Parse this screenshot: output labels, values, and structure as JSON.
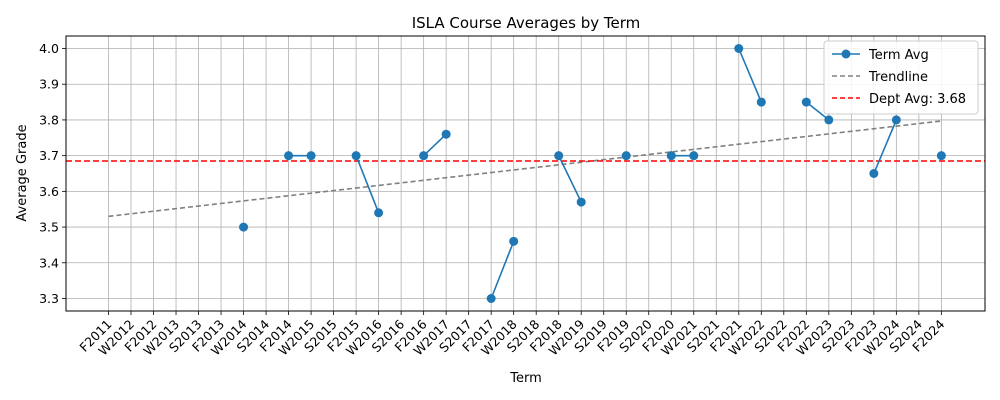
{
  "chart_data": {
    "type": "line",
    "title": "ISLA Course Averages by Term",
    "xlabel": "Term",
    "ylabel": "Average Grade",
    "ylim": [
      3.265,
      4.035
    ],
    "yticks": [
      3.3,
      3.4,
      3.5,
      3.6,
      3.7,
      3.8,
      3.9,
      4.0
    ],
    "ytick_labels": [
      "3.3",
      "3.4",
      "3.5",
      "3.6",
      "3.7",
      "3.8",
      "3.9",
      "4.0"
    ],
    "grid": true,
    "legend_position": "top-right",
    "categories": [
      "F2011",
      "W2012",
      "F2012",
      "W2013",
      "S2013",
      "F2013",
      "W2014",
      "S2014",
      "F2014",
      "W2015",
      "S2015",
      "F2015",
      "W2016",
      "S2016",
      "F2016",
      "W2017",
      "S2017",
      "F2017",
      "W2018",
      "S2018",
      "F2018",
      "W2019",
      "S2019",
      "F2019",
      "S2020",
      "F2020",
      "W2021",
      "S2021",
      "F2021",
      "W2022",
      "S2022",
      "F2022",
      "W2023",
      "S2023",
      "F2023",
      "W2024",
      "S2024",
      "F2024"
    ],
    "series": [
      {
        "name": "Term Avg",
        "color": "#1f77b4",
        "marker": "circle",
        "values": [
          null,
          null,
          null,
          null,
          null,
          null,
          3.5,
          null,
          3.7,
          3.7,
          null,
          3.7,
          3.54,
          null,
          3.7,
          3.76,
          null,
          3.3,
          3.46,
          null,
          3.7,
          3.57,
          null,
          3.7,
          null,
          3.7,
          3.7,
          null,
          4.0,
          3.85,
          null,
          3.85,
          3.8,
          null,
          3.65,
          3.8,
          null,
          3.7
        ]
      },
      {
        "name": "Trendline",
        "color": "#808080",
        "style": "dashed",
        "start": 3.53,
        "end": 3.797
      },
      {
        "name": "Dept Avg: 3.68",
        "color": "#ff0000",
        "style": "dashed",
        "value": 3.685
      }
    ]
  }
}
